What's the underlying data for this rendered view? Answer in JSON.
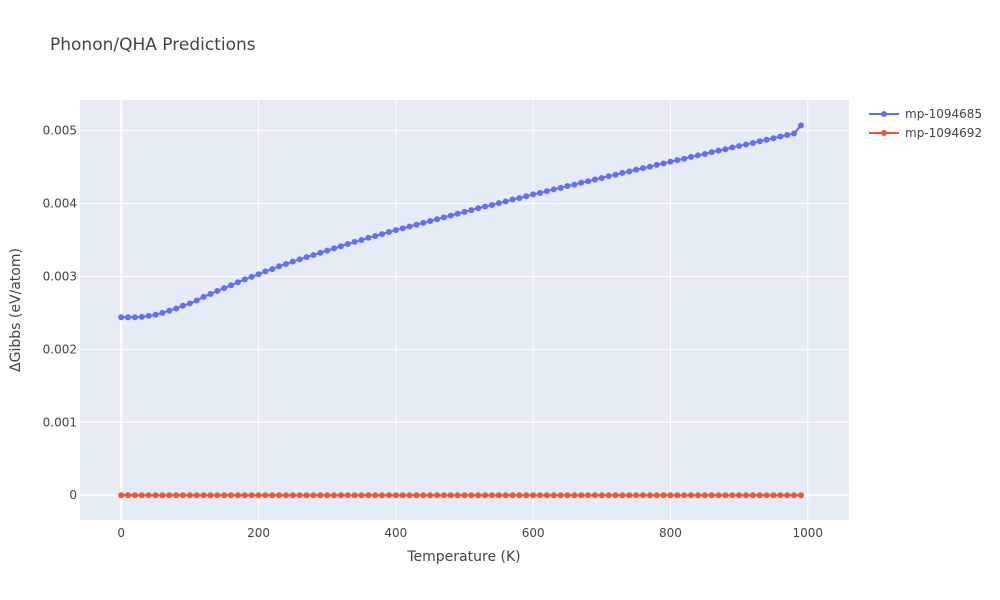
{
  "chart_data": {
    "type": "line",
    "title": "Phonon/QHA Predictions",
    "xlabel": "Temperature (K)",
    "ylabel": "ΔGibbs (eV/atom)",
    "xlim": [
      -60,
      1060
    ],
    "ylim": [
      -0.00034,
      0.00542
    ],
    "x_ticks": [
      0,
      200,
      400,
      600,
      800,
      1000
    ],
    "x_tick_labels": [
      "0",
      "200",
      "400",
      "600",
      "800",
      "1000"
    ],
    "y_ticks": [
      0,
      0.001,
      0.002,
      0.003,
      0.004,
      0.005
    ],
    "y_tick_labels": [
      "0",
      "0.001",
      "0.002",
      "0.003",
      "0.004",
      "0.005"
    ],
    "grid": true,
    "legend_position": "top-right",
    "x": [
      0,
      10,
      20,
      30,
      40,
      50,
      60,
      70,
      80,
      90,
      100,
      110,
      120,
      130,
      140,
      150,
      160,
      170,
      180,
      190,
      200,
      210,
      220,
      230,
      240,
      250,
      260,
      270,
      280,
      290,
      300,
      310,
      320,
      330,
      340,
      350,
      360,
      370,
      380,
      390,
      400,
      410,
      420,
      430,
      440,
      450,
      460,
      470,
      480,
      490,
      500,
      510,
      520,
      530,
      540,
      550,
      560,
      570,
      580,
      590,
      600,
      610,
      620,
      630,
      640,
      650,
      660,
      670,
      680,
      690,
      700,
      710,
      720,
      730,
      740,
      750,
      760,
      770,
      780,
      790,
      800,
      810,
      820,
      830,
      840,
      850,
      860,
      870,
      880,
      890,
      900,
      910,
      920,
      930,
      940,
      950,
      960,
      970,
      980,
      990
    ],
    "series": [
      {
        "name": "mp-1094685",
        "color": "#636efa",
        "values": [
          0.00244,
          0.00244,
          0.00244,
          0.002445,
          0.00246,
          0.002475,
          0.0025,
          0.00253,
          0.00256,
          0.0026,
          0.00263,
          0.00267,
          0.00272,
          0.00276,
          0.0028,
          0.00284,
          0.00288,
          0.00292,
          0.00296,
          0.002995,
          0.00303,
          0.00307,
          0.0031,
          0.00314,
          0.00317,
          0.003205,
          0.003235,
          0.003265,
          0.003295,
          0.003325,
          0.003355,
          0.003385,
          0.003415,
          0.003445,
          0.003475,
          0.0035,
          0.00353,
          0.003555,
          0.00358,
          0.00361,
          0.003635,
          0.00366,
          0.003685,
          0.00371,
          0.003735,
          0.00376,
          0.003785,
          0.00381,
          0.003835,
          0.00386,
          0.003885,
          0.00391,
          0.003935,
          0.00396,
          0.00398,
          0.004005,
          0.00403,
          0.004055,
          0.004075,
          0.0041,
          0.004125,
          0.004145,
          0.00417,
          0.004195,
          0.004215,
          0.00424,
          0.00426,
          0.004285,
          0.004305,
          0.00433,
          0.00435,
          0.004375,
          0.004395,
          0.00442,
          0.00444,
          0.004465,
          0.004485,
          0.004505,
          0.00453,
          0.00455,
          0.004575,
          0.004595,
          0.004615,
          0.00464,
          0.00466,
          0.00468,
          0.004705,
          0.004725,
          0.004745,
          0.00477,
          0.00479,
          0.00481,
          0.00483,
          0.004855,
          0.004875,
          0.004895,
          0.00492,
          0.00494,
          0.00496,
          0.00507
        ]
      },
      {
        "name": "mp-1094692",
        "color": "#ef553b",
        "values": [
          0,
          0,
          0,
          0,
          0,
          0,
          0,
          0,
          0,
          0,
          0,
          0,
          0,
          0,
          0,
          0,
          0,
          0,
          0,
          0,
          0,
          0,
          0,
          0,
          0,
          0,
          0,
          0,
          0,
          0,
          0,
          0,
          0,
          0,
          0,
          0,
          0,
          0,
          0,
          0,
          0,
          0,
          0,
          0,
          0,
          0,
          0,
          0,
          0,
          0,
          0,
          0,
          0,
          0,
          0,
          0,
          0,
          0,
          0,
          0,
          0,
          0,
          0,
          0,
          0,
          0,
          0,
          0,
          0,
          0,
          0,
          0,
          0,
          0,
          0,
          0,
          0,
          0,
          0,
          0,
          0,
          0,
          0,
          0,
          0,
          0,
          0,
          0,
          0,
          0,
          0,
          0,
          0,
          0,
          0,
          0,
          0,
          0,
          0,
          0
        ]
      }
    ]
  }
}
